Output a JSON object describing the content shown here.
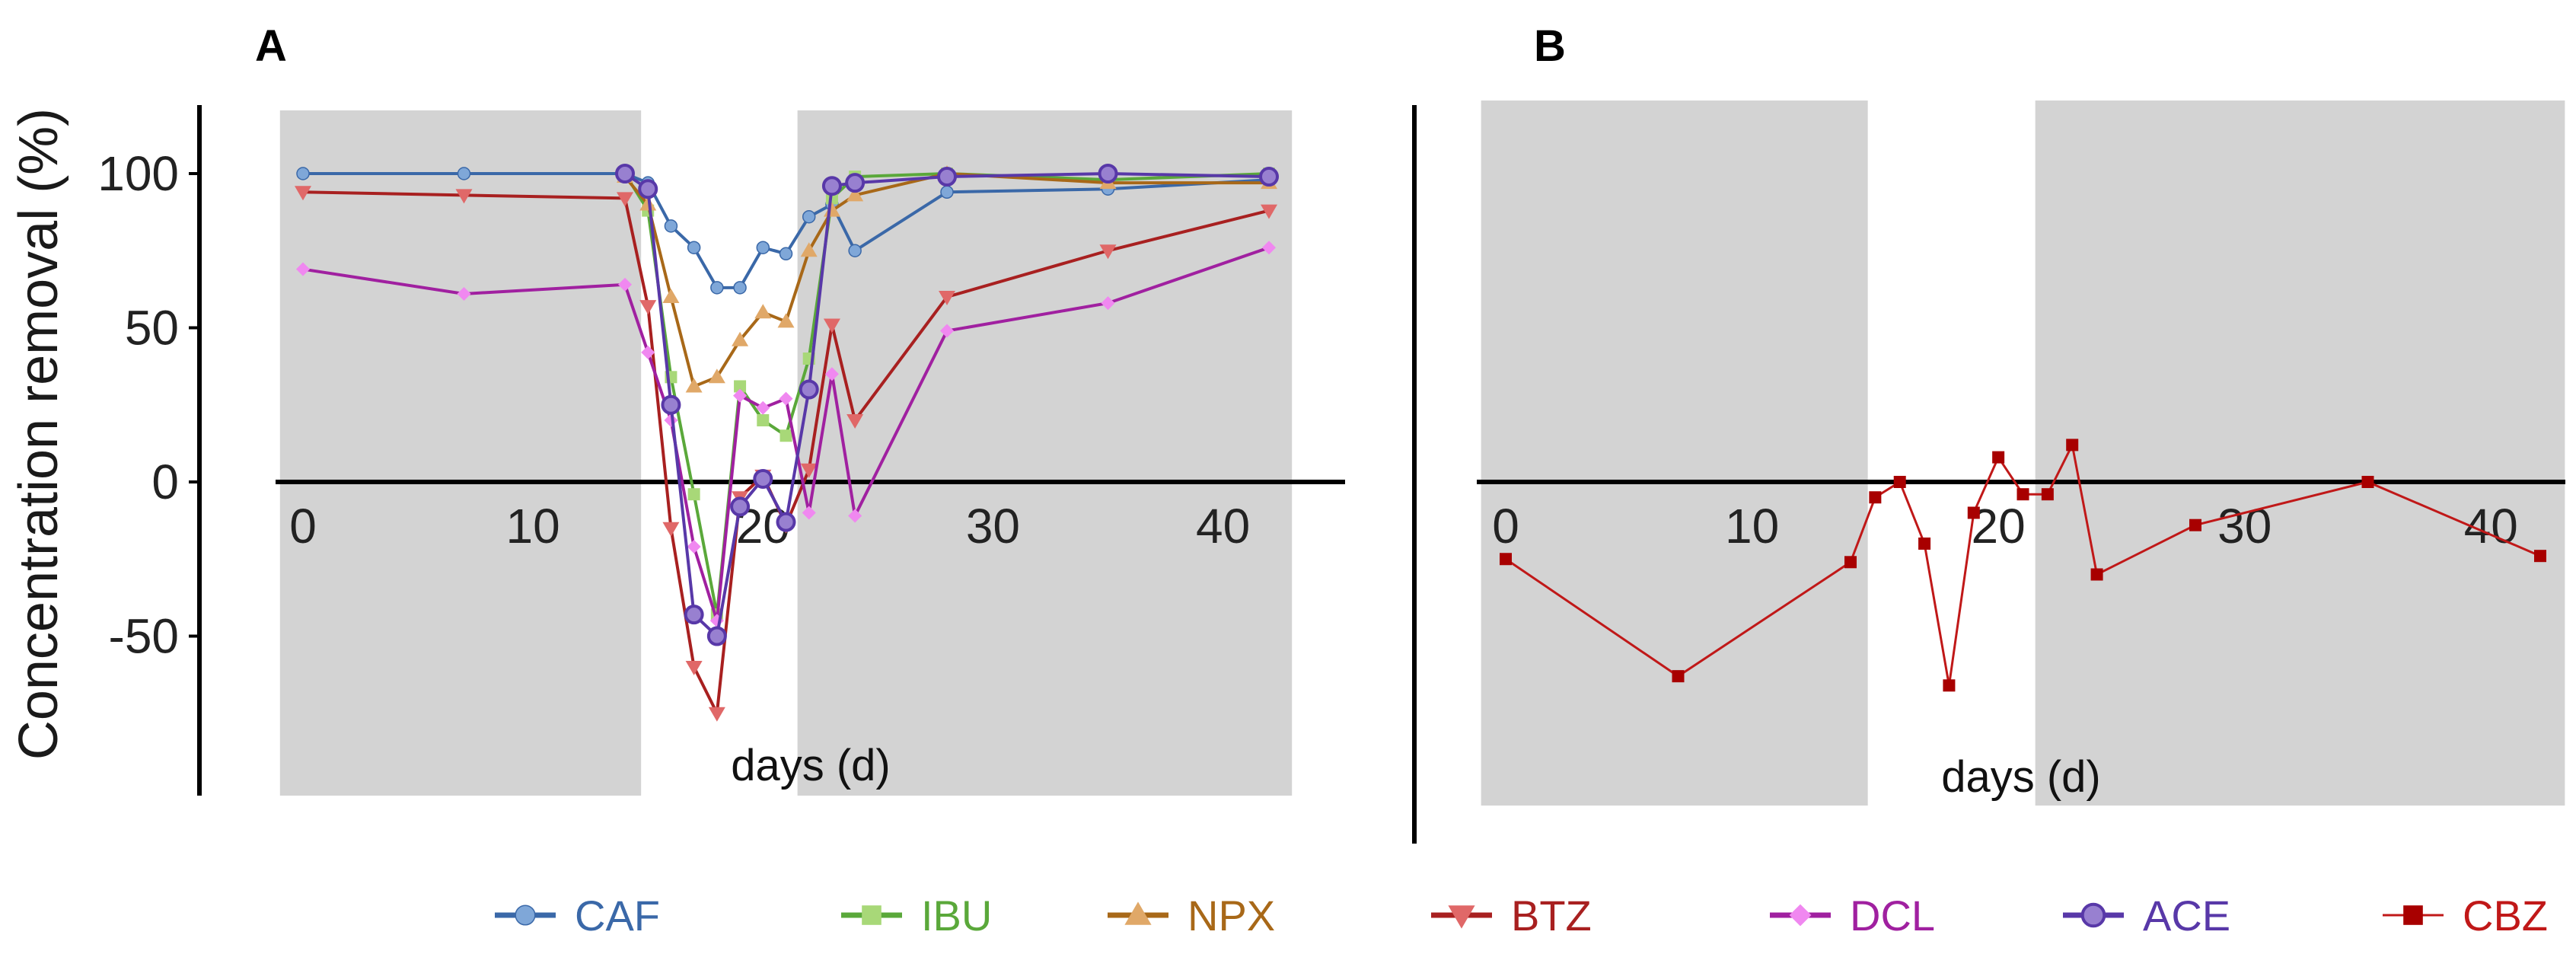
{
  "colors": {
    "CAF_line": "#3a68a8",
    "CAF_marker": "#7fa7d8",
    "IBU_line": "#5aa83a",
    "IBU_marker": "#a8d878",
    "NPX_line": "#a86818",
    "NPX_marker": "#e0a868",
    "BTZ_line": "#a82020",
    "BTZ_marker": "#e06868",
    "DCL_line": "#a020a0",
    "DCL_marker": "#f088f0",
    "ACE_line": "#5838a8",
    "ACE_marker": "#9880d0",
    "CBZ_line": "#c01818",
    "CBZ_marker": "#a80000",
    "shade": "#d3d3d3"
  },
  "chart_data": [
    {
      "panel": "A",
      "type": "line",
      "title": "",
      "xlabel": "days (d)",
      "ylabel": "Concentration removal (%)",
      "xlim": [
        -1,
        43
      ],
      "ylim": [
        -100,
        120
      ],
      "xticks": [
        "0",
        "10",
        "20",
        "30",
        "40"
      ],
      "yticks": [
        "100",
        "50",
        "0",
        "-50"
      ],
      "shaded_x_ranges": [
        [
          -1,
          14.7
        ],
        [
          21.5,
          43
        ]
      ],
      "series": [
        {
          "name": "CAF",
          "marker": "circle",
          "x": [
            0,
            7,
            14,
            15,
            16,
            17,
            18,
            19,
            20,
            21,
            22,
            23,
            24,
            28,
            35,
            42
          ],
          "y": [
            100,
            100,
            100,
            97,
            83,
            76,
            63,
            63,
            76,
            74,
            86,
            90,
            75,
            94,
            95,
            98
          ]
        },
        {
          "name": "IBU",
          "marker": "square",
          "x": [
            14,
            15,
            16,
            17,
            18,
            19,
            20,
            21,
            22,
            23,
            24,
            28,
            35,
            42
          ],
          "y": [
            100,
            88,
            34,
            -4,
            -43,
            31,
            20,
            15,
            40,
            92,
            99,
            100,
            98,
            100
          ]
        },
        {
          "name": "NPX",
          "marker": "triangle-up",
          "x": [
            14,
            15,
            16,
            17,
            18,
            19,
            20,
            21,
            22,
            23,
            24,
            28,
            35,
            42
          ],
          "y": [
            99,
            90,
            60,
            31,
            34,
            46,
            55,
            52,
            75,
            88,
            93,
            100,
            97,
            97
          ]
        },
        {
          "name": "BTZ",
          "marker": "triangle-down",
          "x": [
            0,
            7,
            14,
            15,
            16,
            17,
            18,
            19,
            20,
            21,
            22,
            23,
            24,
            28,
            35,
            42
          ],
          "y": [
            94,
            93,
            92,
            57,
            -15,
            -60,
            -75,
            -5,
            2,
            -14,
            4,
            51,
            20,
            60,
            75,
            88
          ]
        },
        {
          "name": "DCL",
          "marker": "diamond",
          "x": [
            0,
            7,
            14,
            15,
            16,
            17,
            18,
            19,
            20,
            21,
            22,
            23,
            24,
            28,
            35,
            42
          ],
          "y": [
            69,
            61,
            64,
            42,
            20,
            -21,
            -45,
            28,
            24,
            27,
            -10,
            35,
            -11,
            49,
            58,
            76
          ]
        },
        {
          "name": "ACE",
          "marker": "circle-large",
          "x": [
            14,
            15,
            16,
            17,
            18,
            19,
            20,
            21,
            22,
            23,
            24,
            28,
            35,
            42
          ],
          "y": [
            100,
            95,
            25,
            -43,
            -50,
            -8,
            1,
            -13,
            30,
            96,
            97,
            99,
            100,
            99
          ]
        }
      ]
    },
    {
      "panel": "B",
      "type": "line",
      "title": "",
      "xlabel": "days (d)",
      "ylabel": "",
      "xlim": [
        -1,
        43
      ],
      "ylim": [
        -100,
        120
      ],
      "xticks": [
        "0",
        "10",
        "20",
        "30",
        "40"
      ],
      "shaded_x_ranges": [
        [
          -1,
          14.7
        ],
        [
          21.5,
          43
        ]
      ],
      "series": [
        {
          "name": "CBZ",
          "marker": "square",
          "x": [
            0,
            7,
            14,
            15,
            16,
            17,
            18,
            19,
            20,
            21,
            22,
            23,
            24,
            28,
            35,
            42
          ],
          "y": [
            -25,
            -63,
            -26,
            -5,
            0,
            -20,
            -66,
            -10,
            8,
            -4,
            -4,
            12,
            -30,
            -14,
            0,
            -24
          ]
        }
      ]
    }
  ],
  "legend": [
    {
      "name": "CAF",
      "marker": "circle"
    },
    {
      "name": "IBU",
      "marker": "square"
    },
    {
      "name": "NPX",
      "marker": "triangle-up"
    },
    {
      "name": "BTZ",
      "marker": "triangle-down"
    },
    {
      "name": "DCL",
      "marker": "diamond"
    },
    {
      "name": "ACE",
      "marker": "circle-large"
    },
    {
      "name": "CBZ",
      "marker": "square"
    }
  ]
}
